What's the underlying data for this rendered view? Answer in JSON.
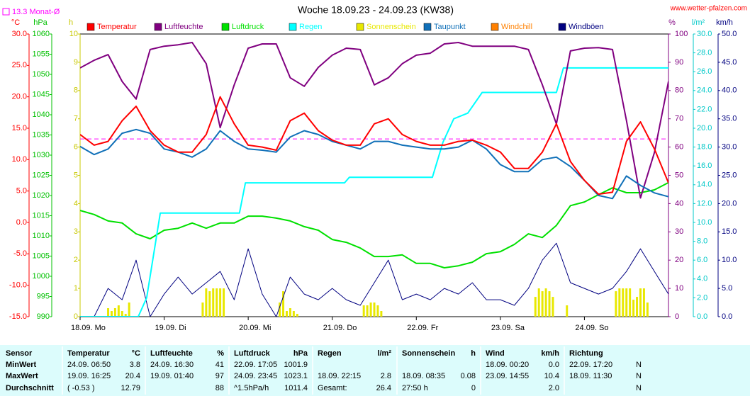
{
  "chart_data": {
    "type": "line",
    "title": "Woche 18.09.23 - 24.09.23 (KW38)",
    "source": "www.wetter-pfalzen.com",
    "reference_line": {
      "label": "13.3 Monat-Ø",
      "value": 13.3,
      "axis": "temp",
      "color": "#ff00ff"
    },
    "xlim": [
      0,
      168
    ],
    "xticks": [
      {
        "value": 0,
        "label": "18.09. Mo"
      },
      {
        "value": 24,
        "label": "19.09. Di"
      },
      {
        "value": 48,
        "label": "20.09. Mi"
      },
      {
        "value": 72,
        "label": "21.09. Do"
      },
      {
        "value": 96,
        "label": "22.09. Fr"
      },
      {
        "value": 120,
        "label": "23.09. Sa"
      },
      {
        "value": 144,
        "label": "24.09. So"
      }
    ],
    "x": [
      0,
      4,
      8,
      12,
      16,
      20,
      24,
      28,
      32,
      36,
      40,
      44,
      48,
      52,
      56,
      60,
      64,
      68,
      72,
      76,
      80,
      84,
      88,
      92,
      96,
      100,
      104,
      108,
      112,
      116,
      120,
      124,
      128,
      132,
      136,
      140,
      144,
      148,
      152,
      156,
      160,
      164,
      168
    ],
    "axes": [
      {
        "id": "temp",
        "label": "°C",
        "side": "left",
        "color": "#ff0000",
        "lim": [
          -15,
          30
        ],
        "ticks": [
          {
            "value": 30,
            "label": "30.0"
          },
          {
            "value": 25,
            "label": "25.0"
          },
          {
            "value": 20,
            "label": "20.0"
          },
          {
            "value": 15,
            "label": "15.0"
          },
          {
            "value": 10,
            "label": "10.0"
          },
          {
            "value": 5,
            "label": "5.0"
          },
          {
            "value": 0,
            "label": "0.0"
          },
          {
            "value": -5,
            "label": "-5.0"
          },
          {
            "value": -10,
            "label": "-10.0"
          },
          {
            "value": -15,
            "label": "-15.0"
          }
        ]
      },
      {
        "id": "hpa",
        "label": "hPa",
        "side": "left",
        "color": "#00c000",
        "lim": [
          990,
          1060
        ],
        "ticks": [
          1060,
          1055,
          1050,
          1045,
          1040,
          1035,
          1030,
          1025,
          1020,
          1015,
          1010,
          1005,
          1000,
          995,
          990
        ]
      },
      {
        "id": "sun",
        "label": "h",
        "side": "left",
        "color": "#c8c800",
        "lim": [
          0,
          10
        ],
        "ticks": [
          10,
          9,
          8,
          7,
          6,
          5,
          4,
          3,
          2,
          1,
          0
        ]
      },
      {
        "id": "hum",
        "label": "%",
        "side": "right",
        "color": "#800080",
        "lim": [
          0,
          100
        ],
        "ticks": [
          100,
          90,
          80,
          70,
          60,
          50,
          40,
          30,
          20,
          10,
          0
        ]
      },
      {
        "id": "rain",
        "label": "l/m²",
        "side": "right",
        "color": "#00c8c8",
        "lim": [
          0,
          30
        ],
        "ticks": [
          {
            "value": 30,
            "label": "30.0"
          },
          {
            "value": 28,
            "label": "28.0"
          },
          {
            "value": 26,
            "label": "26.0"
          },
          {
            "value": 24,
            "label": "24.0"
          },
          {
            "value": 22,
            "label": "22.0"
          },
          {
            "value": 20,
            "label": "20.0"
          },
          {
            "value": 18,
            "label": "18.0"
          },
          {
            "value": 16,
            "label": "16.0"
          },
          {
            "value": 14,
            "label": "14.0"
          },
          {
            "value": 12,
            "label": "12.0"
          },
          {
            "value": 10,
            "label": "10.0"
          },
          {
            "value": 8,
            "label": "8.0"
          },
          {
            "value": 6,
            "label": "6.0"
          },
          {
            "value": 4,
            "label": "4.0"
          },
          {
            "value": 2,
            "label": "2.0"
          },
          {
            "value": 0,
            "label": "0.0"
          }
        ]
      },
      {
        "id": "wind",
        "label": "km/h",
        "side": "right",
        "color": "#000080",
        "lim": [
          0,
          50
        ],
        "ticks": [
          {
            "value": 50,
            "label": "50.0"
          },
          {
            "value": 45,
            "label": "45.0"
          },
          {
            "value": 40,
            "label": "40.0"
          },
          {
            "value": 35,
            "label": "35.0"
          },
          {
            "value": 30,
            "label": "30.0"
          },
          {
            "value": 25,
            "label": "25.0"
          },
          {
            "value": 20,
            "label": "20.0"
          },
          {
            "value": 15,
            "label": "15.0"
          },
          {
            "value": 10,
            "label": "10.0"
          },
          {
            "value": 5,
            "label": "5.0"
          },
          {
            "value": 0,
            "label": "0.0"
          }
        ]
      }
    ],
    "series": [
      {
        "name": "Temperatur",
        "color": "#ff0000",
        "axis": "temp",
        "values": [
          14.0,
          12.3,
          12.9,
          16.2,
          18.5,
          14.6,
          12.3,
          11.2,
          11.2,
          14.0,
          20.0,
          15.7,
          12.3,
          12.0,
          11.5,
          16.2,
          17.4,
          14.6,
          13.1,
          12.3,
          12.3,
          15.7,
          16.5,
          14.0,
          12.9,
          12.3,
          12.3,
          12.9,
          13.1,
          12.3,
          11.2,
          8.6,
          8.6,
          11.2,
          15.7,
          9.7,
          6.7,
          4.5,
          4.8,
          12.9,
          16.0,
          11.7,
          6.3
        ]
      },
      {
        "name": "Luftfeuchte",
        "color": "#800080",
        "axis": "hum",
        "values": [
          88.0,
          90.7,
          92.7,
          83.2,
          77.0,
          94.5,
          95.7,
          96.2,
          97.0,
          89.5,
          66.9,
          82.0,
          95.0,
          96.5,
          96.5,
          84.5,
          81.5,
          88.2,
          92.5,
          95.0,
          94.5,
          82.0,
          84.5,
          89.5,
          92.5,
          93.2,
          96.5,
          97.0,
          95.7,
          95.7,
          95.7,
          95.7,
          94.5,
          82.0,
          68.2,
          94.0,
          95.0,
          95.2,
          94.5,
          69.4,
          42.0,
          58.1,
          83.2
        ]
      },
      {
        "name": "Luftdruck",
        "color": "#00e000",
        "axis": "hpa",
        "values": [
          1016.3,
          1015.3,
          1013.7,
          1013.2,
          1010.5,
          1009.3,
          1011.4,
          1011.9,
          1013.2,
          1011.9,
          1013.2,
          1013.2,
          1014.9,
          1014.9,
          1014.4,
          1013.7,
          1012.3,
          1011.4,
          1009.1,
          1008.4,
          1007.0,
          1004.9,
          1004.9,
          1005.3,
          1003.2,
          1003.2,
          1002.1,
          1002.6,
          1003.5,
          1005.6,
          1006.1,
          1007.9,
          1010.5,
          1009.6,
          1012.6,
          1017.5,
          1018.4,
          1020.2,
          1021.9,
          1020.7,
          1020.7,
          1021.4,
          1023.2
        ]
      },
      {
        "name": "Regen",
        "color": "#00ffff",
        "axis": "rain",
        "x": [
          0,
          16.6,
          19,
          22.9,
          45.5,
          47.2,
          75.5,
          76.9,
          100.6,
          103.6,
          106.7,
          110.7,
          114.8,
          136,
          138,
          168
        ],
        "values": [
          0,
          0,
          2.0,
          11.0,
          11.0,
          14.2,
          14.2,
          14.8,
          14.8,
          18.5,
          21.0,
          21.6,
          23.8,
          23.8,
          26.4,
          26.4
        ]
      },
      {
        "name": "Sonnenschein",
        "color": "#e8e800",
        "axis": "sun",
        "type": "bar",
        "x": [
          8,
          9,
          10,
          11,
          12,
          13,
          14,
          35,
          36,
          37,
          38,
          39,
          40,
          41,
          57,
          58,
          59,
          60,
          61,
          62,
          81,
          82,
          83,
          84,
          85,
          86,
          130,
          131,
          132,
          133,
          134,
          135,
          139,
          153,
          154,
          155,
          156,
          157,
          158,
          159,
          160,
          161,
          162
        ],
        "values": [
          0.3,
          0.2,
          0.3,
          0.4,
          0.2,
          0.1,
          0.5,
          0.5,
          1.0,
          0.9,
          1.0,
          1.0,
          1.0,
          1.0,
          0.5,
          0.9,
          0.2,
          0.3,
          0.2,
          0.1,
          0.4,
          0.4,
          0.5,
          0.5,
          0.4,
          0.2,
          0.7,
          1.0,
          0.9,
          1.0,
          0.9,
          0.7,
          0.4,
          0.9,
          1.0,
          1.0,
          1.0,
          1.0,
          0.6,
          0.7,
          1.0,
          1.0,
          0.5
        ]
      },
      {
        "name": "Taupunkt",
        "color": "#1070b8",
        "axis": "temp",
        "values": [
          12.1,
          10.8,
          11.7,
          14.2,
          14.8,
          14.2,
          11.7,
          11.2,
          10.4,
          11.7,
          14.6,
          12.9,
          11.7,
          11.5,
          11.2,
          13.6,
          14.6,
          14.0,
          12.9,
          12.3,
          11.7,
          12.9,
          12.9,
          12.3,
          12.0,
          11.7,
          11.7,
          12.0,
          13.1,
          11.7,
          9.2,
          8.1,
          8.1,
          10.0,
          10.4,
          8.9,
          6.7,
          4.3,
          3.8,
          7.4,
          5.9,
          4.7,
          4.1
        ]
      },
      {
        "name": "Windchill",
        "color": "#ff8000",
        "axis": "temp"
      },
      {
        "name": "Windböen",
        "color": "#000080",
        "axis": "wind",
        "values": [
          0,
          0,
          5,
          3,
          10,
          0,
          4,
          7,
          4,
          6,
          8,
          3,
          12,
          4,
          0,
          7,
          4,
          3,
          5,
          3,
          2,
          6,
          10,
          3,
          4,
          3,
          5,
          4,
          6,
          3,
          3,
          2,
          5,
          10,
          13,
          6,
          5,
          4,
          5,
          8,
          12,
          8,
          4
        ]
      }
    ]
  },
  "table": {
    "header": [
      {
        "name": "Sensor"
      },
      {
        "name": "Temperatur",
        "unit": "°C"
      },
      {
        "name": "Luftfeuchte",
        "unit": "%"
      },
      {
        "name": "Luftdruck",
        "unit": "hPa"
      },
      {
        "name": "Regen",
        "unit": "l/m²"
      },
      {
        "name": "Sonnenschein",
        "unit": "h"
      },
      {
        "name": "Wind",
        "unit": "km/h"
      },
      {
        "name": "Richtung"
      }
    ],
    "rows": [
      {
        "label": "MinWert",
        "cells": [
          [
            "24.09. 06:50",
            "3.8"
          ],
          [
            "24.09. 16:30",
            "41"
          ],
          [
            "22.09. 17:05",
            "1001.9"
          ],
          [
            null,
            null
          ],
          [
            null,
            null
          ],
          [
            "18.09. 00:20",
            "0.0"
          ],
          [
            "22.09. 17:20",
            "N"
          ]
        ]
      },
      {
        "label": "MaxWert",
        "cells": [
          [
            "19.09. 16:25",
            "20.4"
          ],
          [
            "19.09. 01:40",
            "97"
          ],
          [
            "24.09. 23:45",
            "1023.1"
          ],
          [
            "18.09. 22:15",
            "2.8"
          ],
          [
            "18.09. 08:35",
            "0.08"
          ],
          [
            "23.09. 14:55",
            "10.4"
          ],
          [
            "18.09. 11:30",
            "N"
          ]
        ]
      },
      {
        "label": "Durchschnitt",
        "cells": [
          [
            "( -0.53 )",
            "12.79"
          ],
          [
            null,
            "88"
          ],
          [
            "^1.5hPa/h",
            "1011.4"
          ],
          [
            "Gesamt:",
            "26.4"
          ],
          [
            "27:50 h",
            "0"
          ],
          [
            null,
            "2.0"
          ],
          [
            null,
            "N"
          ]
        ]
      }
    ]
  }
}
